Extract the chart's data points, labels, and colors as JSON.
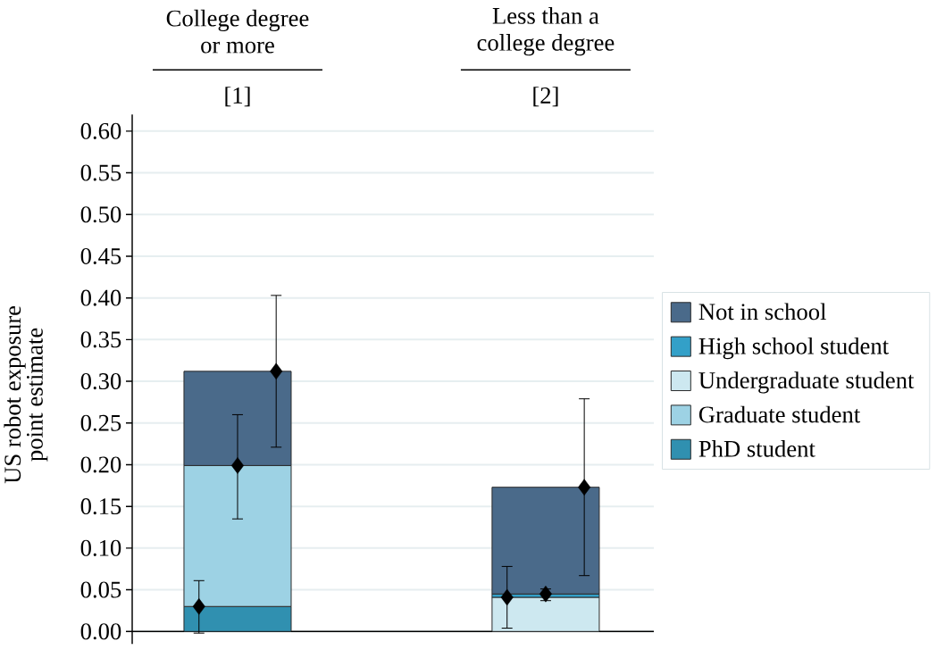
{
  "chart_data": {
    "type": "bar",
    "stacked": true,
    "ylabel": "US robot exposure point estimate",
    "categories": [
      "College degree or more",
      "Less than a college degree"
    ],
    "annotations": [
      "[1]",
      "[2]"
    ],
    "series": [
      {
        "name": "PhD student",
        "color": "#3090b0",
        "values": [
          0.03,
          null
        ]
      },
      {
        "name": "Graduate student",
        "color": "#9dd2e4",
        "values": [
          0.169,
          null
        ]
      },
      {
        "name": "Undergraduate student",
        "color": "#cde8f0",
        "values": [
          null,
          0.041
        ]
      },
      {
        "name": "High school student",
        "color": "#33a0c8",
        "values": [
          null,
          0.004
        ]
      },
      {
        "name": "Not in school",
        "color": "#4a6a8a",
        "values": [
          0.113,
          0.128
        ]
      },
      {
        "type": "scatter",
        "color": "#000000",
        "values": [
          0.03,
          0.041
        ],
        "errors": [
          [
            -0.002,
            0.061
          ],
          [
            0.004,
            0.078
          ]
        ]
      },
      {
        "type": "scatter",
        "color": "#000000",
        "values": [
          0.199,
          0.045
        ],
        "errors": [
          [
            0.135,
            0.26
          ],
          [
            0.037,
            0.051
          ]
        ]
      },
      {
        "type": "scatter",
        "color": "#000000",
        "values": [
          0.312,
          0.173
        ],
        "errors": [
          [
            0.221,
            0.403
          ],
          [
            0.067,
            0.279
          ]
        ]
      }
    ],
    "ylim": [
      -0.015,
      0.62
    ],
    "yticks": [
      {
        "value": 0,
        "label": "0.00"
      },
      {
        "value": 0.05,
        "label": "0.05"
      },
      {
        "value": 0.1,
        "label": "0.10"
      },
      {
        "value": 0.15,
        "label": "0.15"
      },
      {
        "value": 0.2,
        "label": "0.20"
      },
      {
        "value": 0.25,
        "label": "0.25"
      },
      {
        "value": 0.3,
        "label": "0.30"
      },
      {
        "value": 0.35,
        "label": "0.35"
      },
      {
        "value": 0.4,
        "label": "0.40"
      },
      {
        "value": 0.45,
        "label": "0.45"
      },
      {
        "value": 0.5,
        "label": "0.50"
      },
      {
        "value": 0.55,
        "label": "0.55"
      },
      {
        "value": 0.6,
        "label": "0.60"
      }
    ],
    "grid": "y",
    "legend": "right",
    "marker": "diamond",
    "ref_lines": [
      {
        "axis": "y",
        "value": 0,
        "color": "#000000"
      }
    ]
  }
}
